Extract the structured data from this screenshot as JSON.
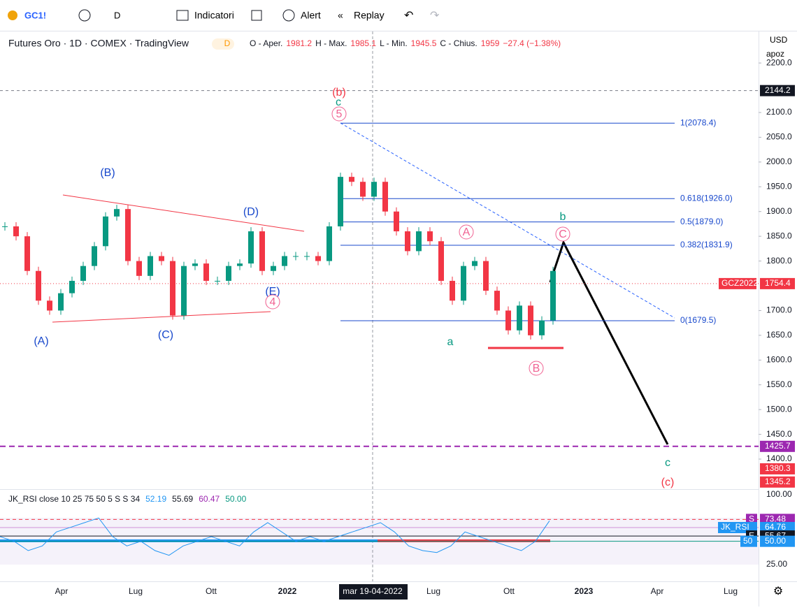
{
  "toolbar": {
    "symbol": "GC1!",
    "interval": "D",
    "indicators": "Indicatori",
    "alert": "Alert",
    "replay": "Replay"
  },
  "legend": {
    "title": "Futures Oro · 1D · COMEX · TradingView",
    "badge": "D",
    "open_label": "O - Aper.",
    "open": 1981.2,
    "high_label": "H - Max.",
    "high": 1985.1,
    "low_label": "L - Min.",
    "low": 1945.5,
    "close_label": "C - Chius.",
    "close": 1959.0,
    "change": "−27.4 (−1.38%)"
  },
  "currency": "USD",
  "scale_mode": "apoz",
  "price": {
    "values": [
      1870,
      1850,
      1780,
      1720,
      1700,
      1735,
      1760,
      1790,
      1830,
      1890,
      1905,
      1800,
      1770,
      1810,
      1800,
      1690,
      1790,
      1795,
      1760,
      1760,
      1790,
      1795,
      1860,
      1780,
      1790,
      1810,
      1810,
      1810,
      1800,
      1870,
      1970,
      1960,
      1930,
      1960,
      1900,
      1860,
      1820,
      1860,
      1840,
      1760,
      1720,
      1790,
      1800,
      1740,
      1700,
      1660,
      1710,
      1650,
      1680,
      1780
    ]
  },
  "price_axis": {
    "ticks": [
      {
        "value": 2200,
        "label": "2200.0"
      },
      {
        "value": 2100,
        "label": "2100.0"
      },
      {
        "value": 2050,
        "label": "2050.0"
      },
      {
        "value": 2000,
        "label": "2000.0"
      },
      {
        "value": 1950,
        "label": "1950.0"
      },
      {
        "value": 1900,
        "label": "1900.0"
      },
      {
        "value": 1850,
        "label": "1850.0"
      },
      {
        "value": 1800,
        "label": "1800.0"
      },
      {
        "value": 1700,
        "label": "1700.0"
      },
      {
        "value": 1650,
        "label": "1650.0"
      },
      {
        "value": 1600,
        "label": "1600.0"
      },
      {
        "value": 1550,
        "label": "1550.0"
      },
      {
        "value": 1500,
        "label": "1500.0"
      },
      {
        "value": 1450,
        "label": "1450.0"
      },
      {
        "value": 1400,
        "label": "1400.0"
      }
    ],
    "levels": [
      2144.2,
      1425.7,
      1380.3,
      1345.2
    ],
    "last_symbol": "GCZ2022",
    "last": 1754.4
  },
  "fib": [
    {
      "value": 2078.4,
      "label": "1(2078.4)"
    },
    {
      "value": 1926.0,
      "label": "0.618(1926.0)"
    },
    {
      "value": 1879.0,
      "label": "0.5(1879.0)"
    },
    {
      "value": 1831.9,
      "label": "0.382(1831.9)"
    },
    {
      "value": 1679.5,
      "label": "0(1679.5)"
    }
  ],
  "waves": [
    "(b)",
    "c",
    "5",
    "(B)",
    "(A)",
    "(C)",
    "(D)",
    "(E)",
    "4",
    "A",
    "B",
    "C",
    "a",
    "b",
    "c",
    "(c)"
  ],
  "time_axis": [
    "Apr",
    "Lug",
    "Ott",
    "2022",
    "mar 19-04-2022",
    "Lug",
    "Ott",
    "2023",
    "Apr",
    "Lug"
  ],
  "rsi": {
    "title": "JK_RSI close 10 25 75 50 5 S S 34",
    "readings": [
      52.19,
      55.69,
      60.47,
      {
        "value": 50,
        "label": "50.00"
      }
    ],
    "values": [
      55,
      50,
      40,
      45,
      60,
      65,
      70,
      75,
      55,
      45,
      50,
      40,
      35,
      45,
      50,
      55,
      50,
      45,
      60,
      70,
      60,
      50,
      55,
      50,
      55,
      60,
      65,
      70,
      60,
      45,
      40,
      38,
      45,
      60,
      55,
      50,
      45,
      40,
      50,
      72
    ],
    "ticks": [
      {
        "value": 100,
        "label": "100.00"
      },
      {
        "value": 25,
        "label": "25.00"
      }
    ],
    "badges": [
      {
        "tag": "S",
        "value": 73.48
      },
      {
        "tag": "JK_RSI",
        "value": 64.76
      },
      {
        "tag": "E",
        "value": 55.67
      },
      {
        "tag": "50",
        "value": 50,
        "label": "50.00"
      }
    ]
  }
}
